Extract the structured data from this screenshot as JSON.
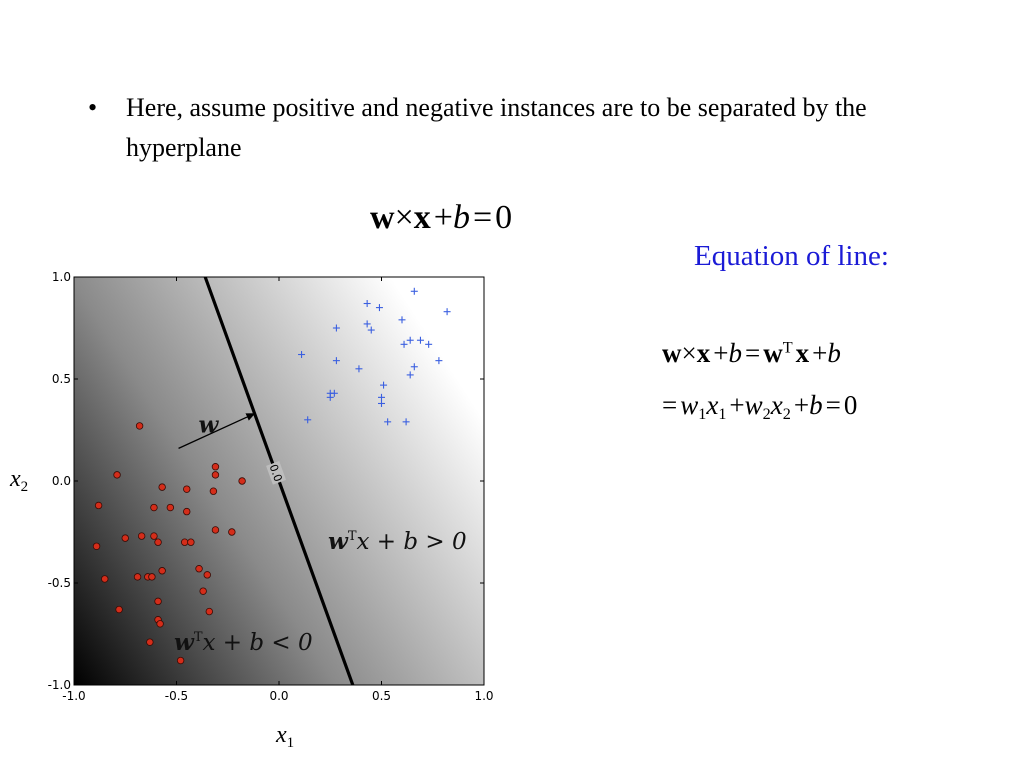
{
  "slide": {
    "bullet_symbol": "•",
    "bullet_text": "Here, assume positive and negative instances are to be separated by the hyperplane",
    "main_equation": {
      "w": "w",
      "times": "×",
      "x": "x",
      "plus": "+",
      "b": "b",
      "eq": "=",
      "zero": "0"
    },
    "side_title": "Equation of line:",
    "side_color": "#1b1bd6",
    "eq1": {
      "w": "w",
      "times": "×",
      "x": "x",
      "plus": "+",
      "b": "b",
      "eq": "=",
      "w2": "w",
      "sup": "T",
      "x2": "x",
      "plus2": "+",
      "b2": "b"
    },
    "eq2": {
      "eq": "=",
      "w1": "w",
      "s1": "1",
      "x1": "x",
      "s1b": "1",
      "plus": "+",
      "w2": "w",
      "s2": "2",
      "x2": "x",
      "s2b": "2",
      "plus2": "+",
      "b": "b",
      "eq2": "=",
      "zero": "0"
    }
  },
  "chart_data": {
    "type": "scatter",
    "xlabel": "x",
    "xlabel_sub": "1",
    "ylabel": "x",
    "ylabel_sub": "2",
    "xlim": [
      -1.0,
      1.0
    ],
    "ylim": [
      -1.0,
      1.0
    ],
    "xticks": [
      "-1.0",
      "-0.5",
      "0.0",
      "0.5",
      "1.0"
    ],
    "yticks": [
      "-1.0",
      "-0.5",
      "0.0",
      "0.5",
      "1.0"
    ],
    "background": "grayscale gradient, darkest at bottom-left, lightest at right",
    "decision_line": {
      "from": [
        -0.36,
        1.0
      ],
      "to": [
        0.36,
        -1.0
      ],
      "contour_label": "0.0"
    },
    "weight_vector": {
      "from": [
        -0.49,
        0.16
      ],
      "to": [
        -0.12,
        0.33
      ],
      "label": "w"
    },
    "region_labels": [
      {
        "text_main": "w",
        "sup": "T",
        "rest": "x + b > 0"
      },
      {
        "text_main": "w",
        "sup": "T",
        "rest": "x + b < 0"
      }
    ],
    "series": [
      {
        "marker": "plus",
        "color": "#3a5fe0",
        "points": [
          [
            0.43,
            0.87
          ],
          [
            0.49,
            0.85
          ],
          [
            0.66,
            0.93
          ],
          [
            0.82,
            0.83
          ],
          [
            0.28,
            0.75
          ],
          [
            0.43,
            0.77
          ],
          [
            0.45,
            0.74
          ],
          [
            0.6,
            0.79
          ],
          [
            0.11,
            0.62
          ],
          [
            0.28,
            0.59
          ],
          [
            0.61,
            0.67
          ],
          [
            0.64,
            0.69
          ],
          [
            0.69,
            0.69
          ],
          [
            0.73,
            0.67
          ],
          [
            0.39,
            0.55
          ],
          [
            0.64,
            0.52
          ],
          [
            0.66,
            0.56
          ],
          [
            0.78,
            0.59
          ],
          [
            0.25,
            0.43
          ],
          [
            0.27,
            0.43
          ],
          [
            0.51,
            0.47
          ],
          [
            0.5,
            0.41
          ],
          [
            0.25,
            0.41
          ],
          [
            0.5,
            0.38
          ],
          [
            0.14,
            0.3
          ],
          [
            0.53,
            0.29
          ],
          [
            0.62,
            0.29
          ]
        ]
      },
      {
        "marker": "circle",
        "color": "#d42d1a",
        "points": [
          [
            -0.68,
            0.27
          ],
          [
            -0.79,
            0.03
          ],
          [
            -0.31,
            0.07
          ],
          [
            -0.31,
            0.03
          ],
          [
            -0.18,
            0.0
          ],
          [
            -0.57,
            -0.03
          ],
          [
            -0.45,
            -0.04
          ],
          [
            -0.32,
            -0.05
          ],
          [
            -0.88,
            -0.12
          ],
          [
            -0.61,
            -0.13
          ],
          [
            -0.53,
            -0.13
          ],
          [
            -0.45,
            -0.15
          ],
          [
            -0.31,
            -0.24
          ],
          [
            -0.23,
            -0.25
          ],
          [
            -0.67,
            -0.27
          ],
          [
            -0.61,
            -0.27
          ],
          [
            -0.75,
            -0.28
          ],
          [
            -0.59,
            -0.3
          ],
          [
            -0.46,
            -0.3
          ],
          [
            -0.43,
            -0.3
          ],
          [
            -0.89,
            -0.32
          ],
          [
            -0.39,
            -0.43
          ],
          [
            -0.57,
            -0.44
          ],
          [
            -0.35,
            -0.46
          ],
          [
            -0.69,
            -0.47
          ],
          [
            -0.64,
            -0.47
          ],
          [
            -0.62,
            -0.47
          ],
          [
            -0.85,
            -0.48
          ],
          [
            -0.37,
            -0.54
          ],
          [
            -0.59,
            -0.59
          ],
          [
            -0.78,
            -0.63
          ],
          [
            -0.34,
            -0.64
          ],
          [
            -0.59,
            -0.68
          ],
          [
            -0.58,
            -0.7
          ],
          [
            -0.63,
            -0.79
          ],
          [
            -0.48,
            -0.88
          ]
        ]
      }
    ]
  }
}
